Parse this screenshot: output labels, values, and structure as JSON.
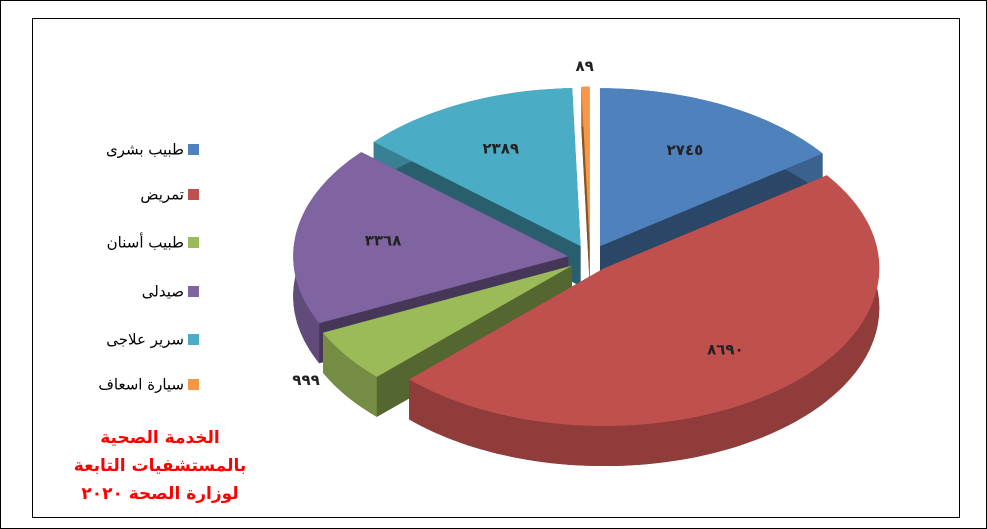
{
  "chart_data": {
    "type": "pie3d",
    "title": "الخدمة الصحية بالمستشفيات التابعة لوزارة الصحة ٢٠٢٠",
    "categories": [
      "طبيب بشرى",
      "تمريض",
      "طبيب أسنان",
      "صيدلى",
      "سرير علاجى",
      "سيارة اسعاف"
    ],
    "values": [
      2745,
      8690,
      999,
      3368,
      2389,
      89
    ],
    "value_labels": [
      "٢٧٤٥",
      "٨٦٩٠",
      "٩٩٩",
      "٣٣٦٨",
      "٢٣٨٩",
      "٨٩"
    ],
    "colors": [
      "#4f81bd",
      "#c0504d",
      "#9bbb59",
      "#8064a2",
      "#4bacc6",
      "#f79646"
    ],
    "legend": "left"
  }
}
